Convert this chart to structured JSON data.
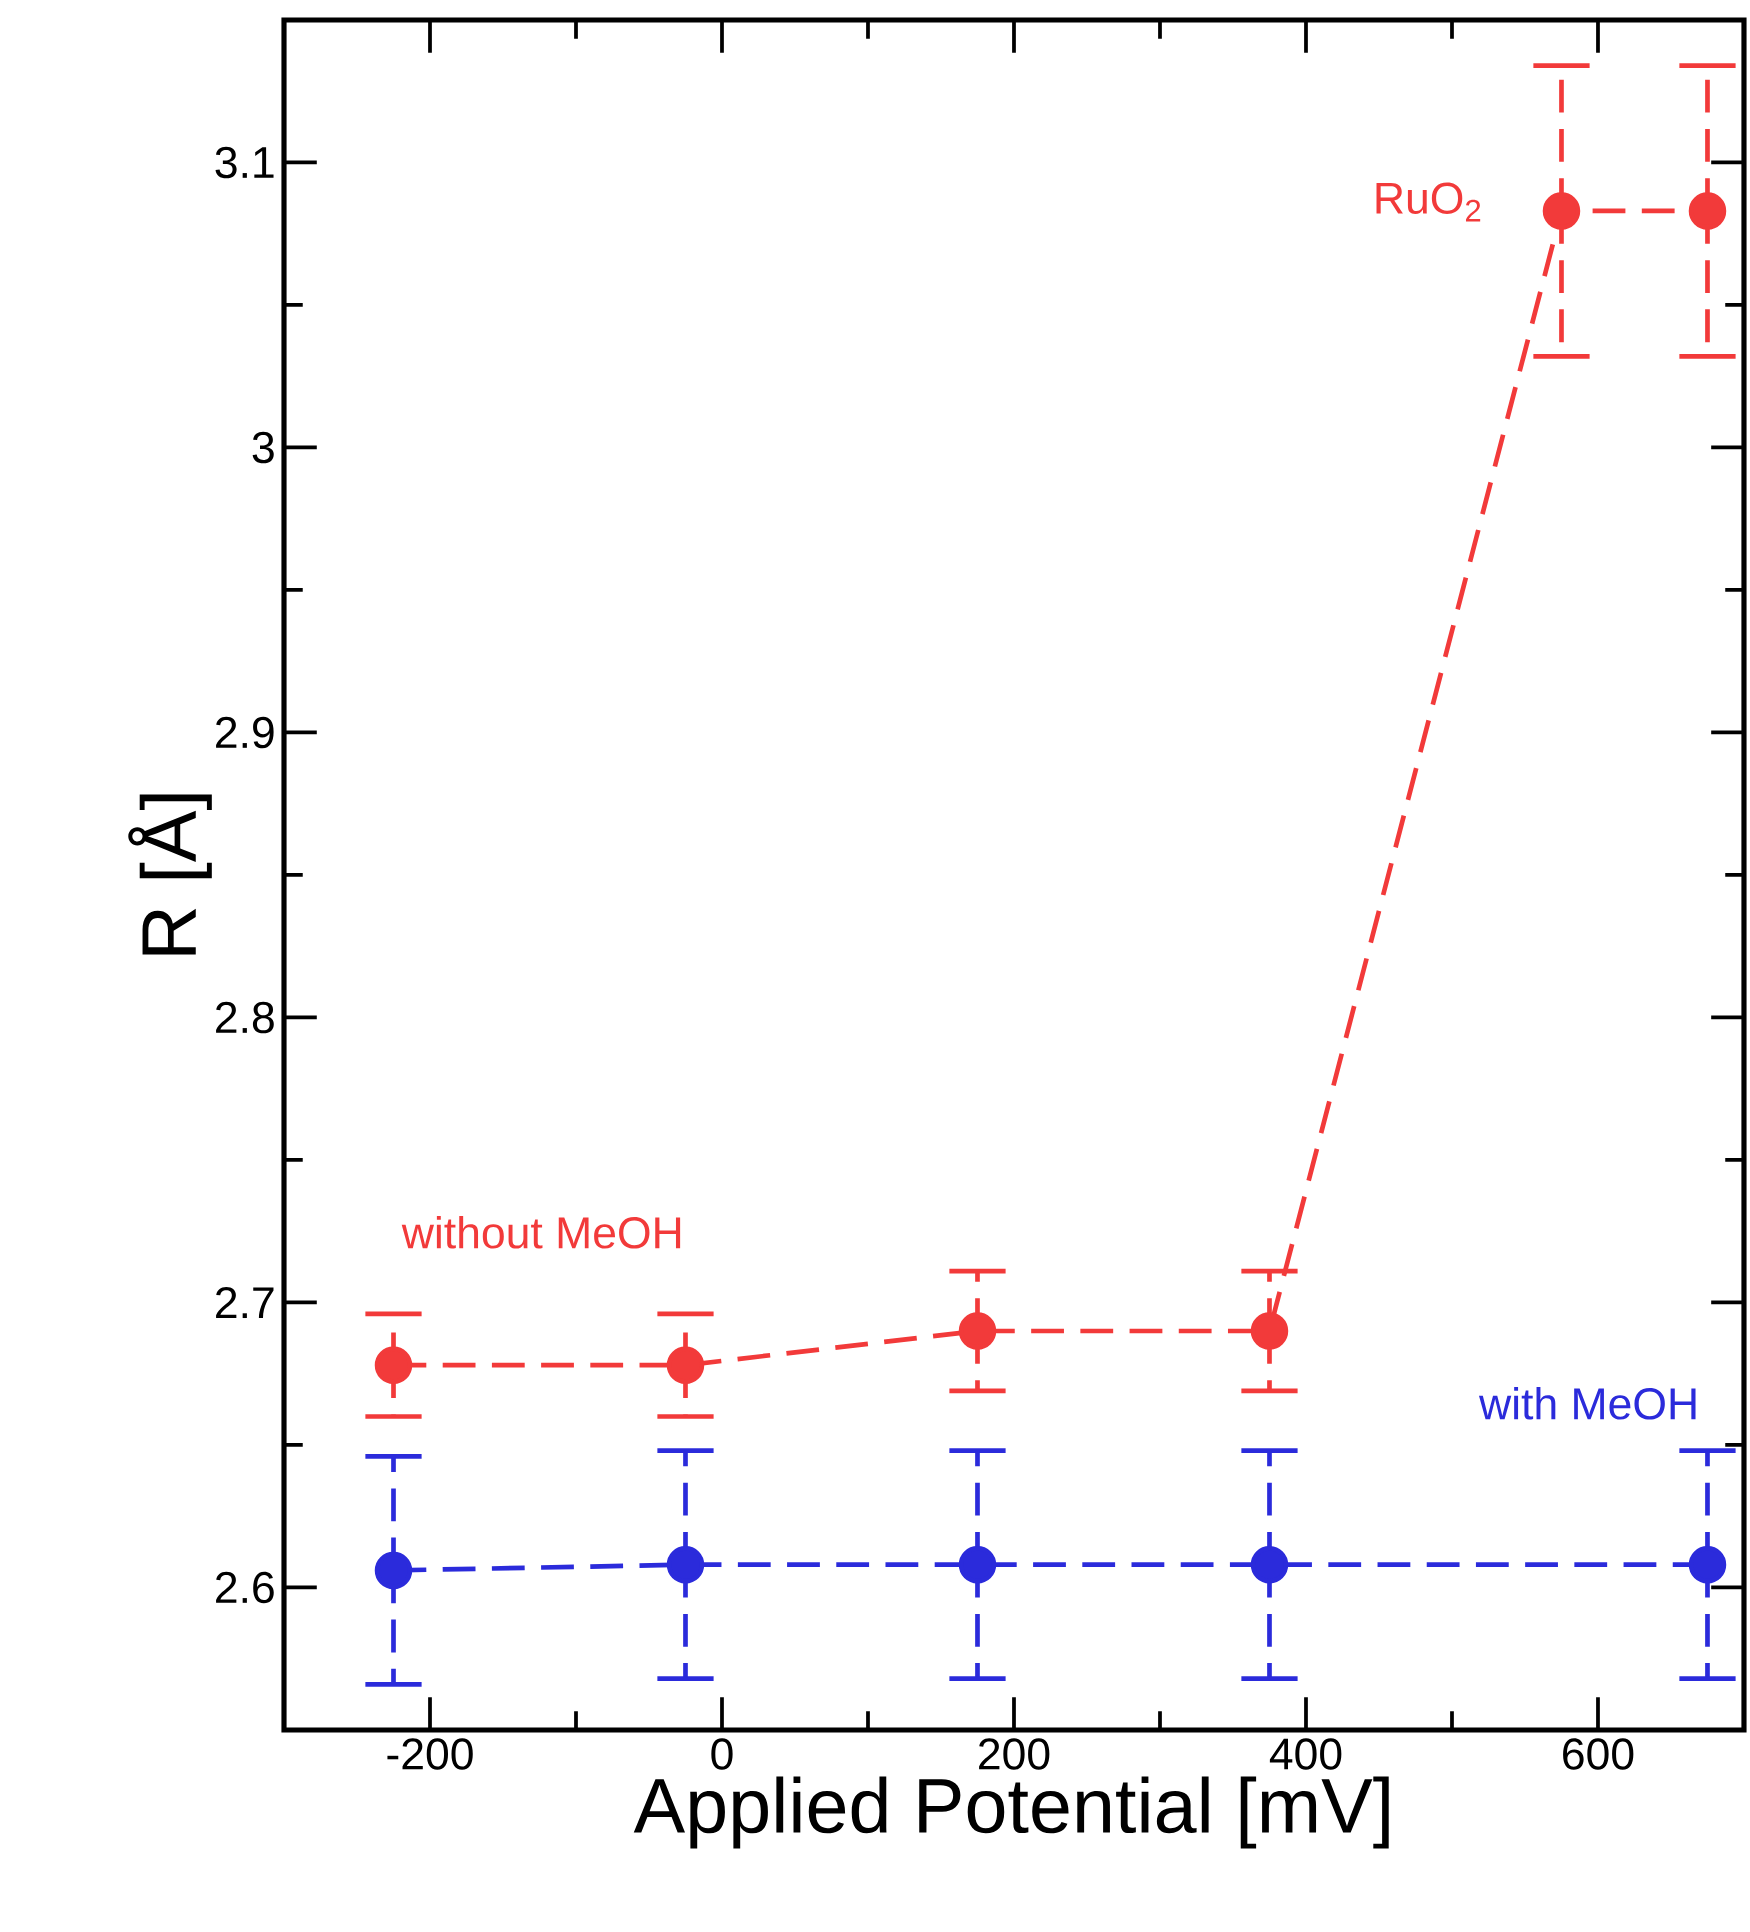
{
  "chart_data": {
    "type": "line",
    "xlabel": "Applied Potential [mV]",
    "ylabel": "R [Å]",
    "xlim": [
      -300,
      700
    ],
    "ylim": [
      2.55,
      3.15
    ],
    "xticks": [
      -200,
      0,
      200,
      400,
      600
    ],
    "yticks": [
      2.6,
      2.7,
      2.8,
      2.9,
      3,
      3.1
    ],
    "series": [
      {
        "name": "without MeOH",
        "color": "#f23a3a",
        "x": [
          -225,
          -25,
          175,
          375,
          575,
          675
        ],
        "values": [
          2.678,
          2.678,
          2.69,
          2.69,
          3.083,
          3.083
        ],
        "errors": [
          0.018,
          0.018,
          0.021,
          0.021,
          0.051,
          0.051
        ]
      },
      {
        "name": "with MeOH",
        "color": "#2b2bdb",
        "x": [
          -225,
          -25,
          175,
          375,
          675
        ],
        "values": [
          2.606,
          2.608,
          2.608,
          2.608,
          2.608
        ],
        "errors": [
          0.04,
          0.04,
          0.04,
          0.04,
          0.04
        ]
      }
    ],
    "annotations": [
      {
        "text": "RuO$_{2}$",
        "x": 575,
        "y": 3.083
      }
    ],
    "marker": "circle",
    "line_style": "dashed",
    "grid": false,
    "legend": false
  }
}
